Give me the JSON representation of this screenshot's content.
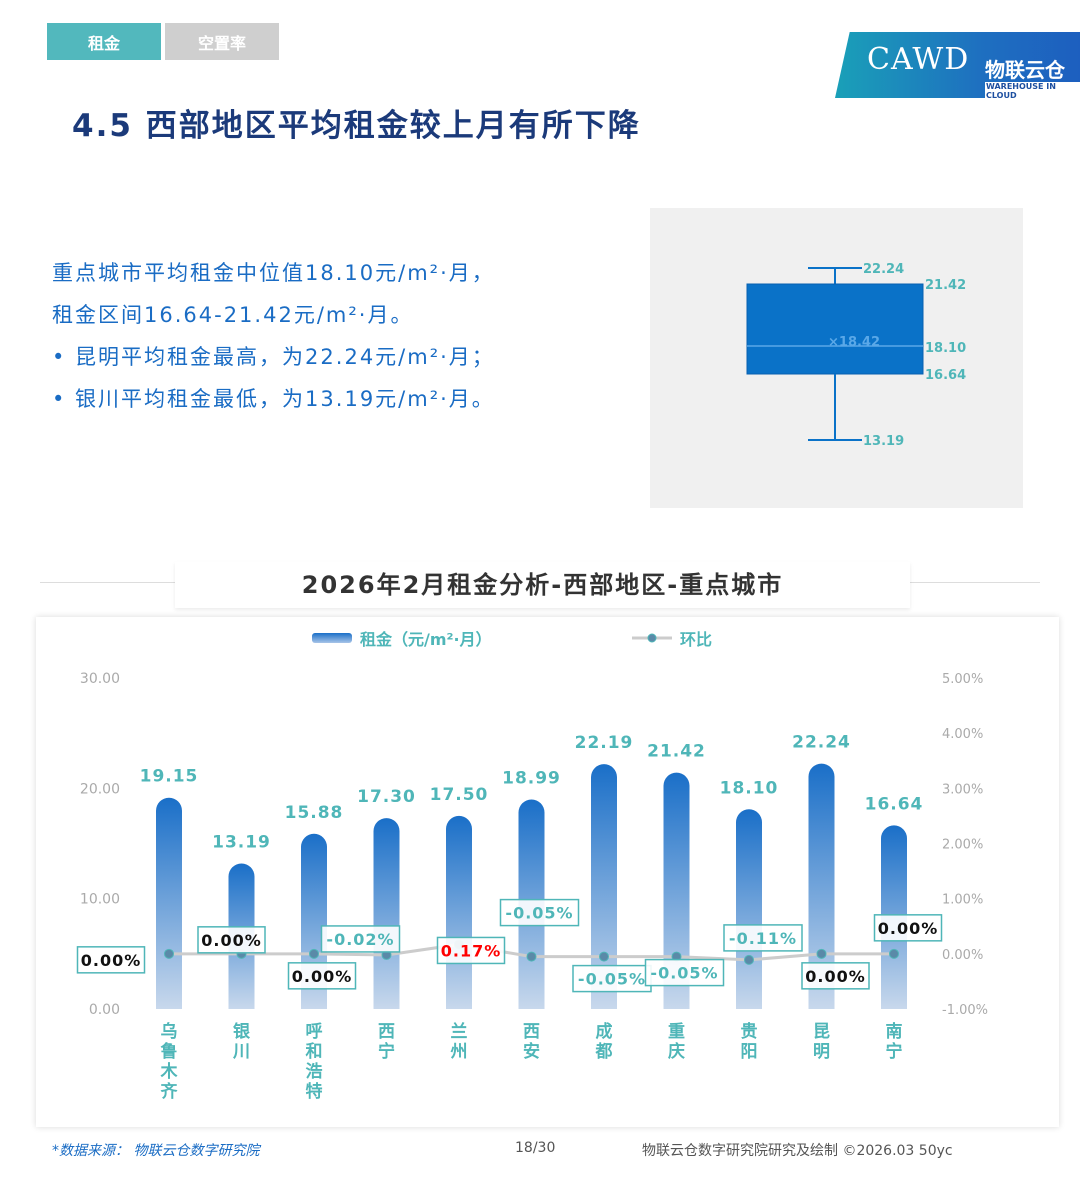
{
  "tabs": [
    "租金",
    "空置率"
  ],
  "tab_colors": {
    "active": "#52b8bd",
    "inactive": "#cfcfcf"
  },
  "logo": {
    "cawd": "CAWD",
    "brand": "物联云仓",
    "brand_en": "WAREHOUSE IN CLOUD"
  },
  "title": "4.5 西部地区平均租金较上月有所下降",
  "description": [
    "重点城市平均租金中位值18.10元/m²·月，",
    "租金区间16.64-21.42元/m²·月。",
    "•  昆明平均租金最高，为22.24元/m²·月；",
    "•  银川平均租金最低，为13.19元/m²·月。"
  ],
  "boxplot": {
    "max": 22.24,
    "q3": 21.42,
    "median": 18.1,
    "mean": 18.42,
    "q1": 16.64,
    "min": 13.19,
    "labels": {
      "max": "22.24",
      "q3": "21.42",
      "mean": "×18.42",
      "median": "18.10",
      "q1": "16.64",
      "min": "13.19"
    },
    "color": "#0a72c8"
  },
  "chart_title": "2026年2月租金分析-西部地区-重点城市",
  "chart_data": {
    "type": "bar+line",
    "categories": [
      "乌鲁木齐",
      "银川",
      "呼和浩特",
      "西宁",
      "兰州",
      "西安",
      "成都",
      "重庆",
      "贵阳",
      "昆明",
      "南宁"
    ],
    "series": [
      {
        "name": "租金（元/m²·月）",
        "type": "bar",
        "axis": "left",
        "values": [
          19.15,
          13.19,
          15.88,
          17.3,
          17.5,
          18.99,
          22.19,
          21.42,
          18.1,
          22.24,
          16.64
        ],
        "labels": [
          "19.15",
          "13.19",
          "15.88",
          "17.30",
          "17.50",
          "18.99",
          "22.19",
          "21.42",
          "18.10",
          "22.24",
          "16.64"
        ]
      },
      {
        "name": "环比",
        "type": "line",
        "axis": "right",
        "values": [
          0.0,
          0.0,
          0.0,
          -0.02,
          0.17,
          -0.05,
          -0.05,
          -0.05,
          -0.11,
          0.0,
          0.0
        ],
        "labels": [
          "0.00%",
          "0.00%",
          "0.00%",
          "-0.02%",
          "0.17%",
          "-0.05%",
          "-0.05%",
          "-0.05%",
          "-0.11%",
          "0.00%",
          "0.00%"
        ]
      }
    ],
    "y_left": {
      "range": [
        0,
        30
      ],
      "ticks": [
        "0.00",
        "10.00",
        "20.00",
        "30.00"
      ]
    },
    "y_right": {
      "range": [
        -1,
        5
      ],
      "ticks": [
        "-1.00%",
        "0.00%",
        "1.00%",
        "2.00%",
        "3.00%",
        "4.00%",
        "5.00%"
      ]
    },
    "legend": "top",
    "colors": {
      "bar": "#1a6fc8",
      "value_label": "#4fb6b8",
      "positive": "#ff0000",
      "line": "#cccccc"
    }
  },
  "footer": {
    "source": "*数据来源：  物联云仓数字研究院",
    "page": "18/30",
    "credit": "物联云仓数字研究院研究及绘制    ©2026.03 50yc"
  }
}
